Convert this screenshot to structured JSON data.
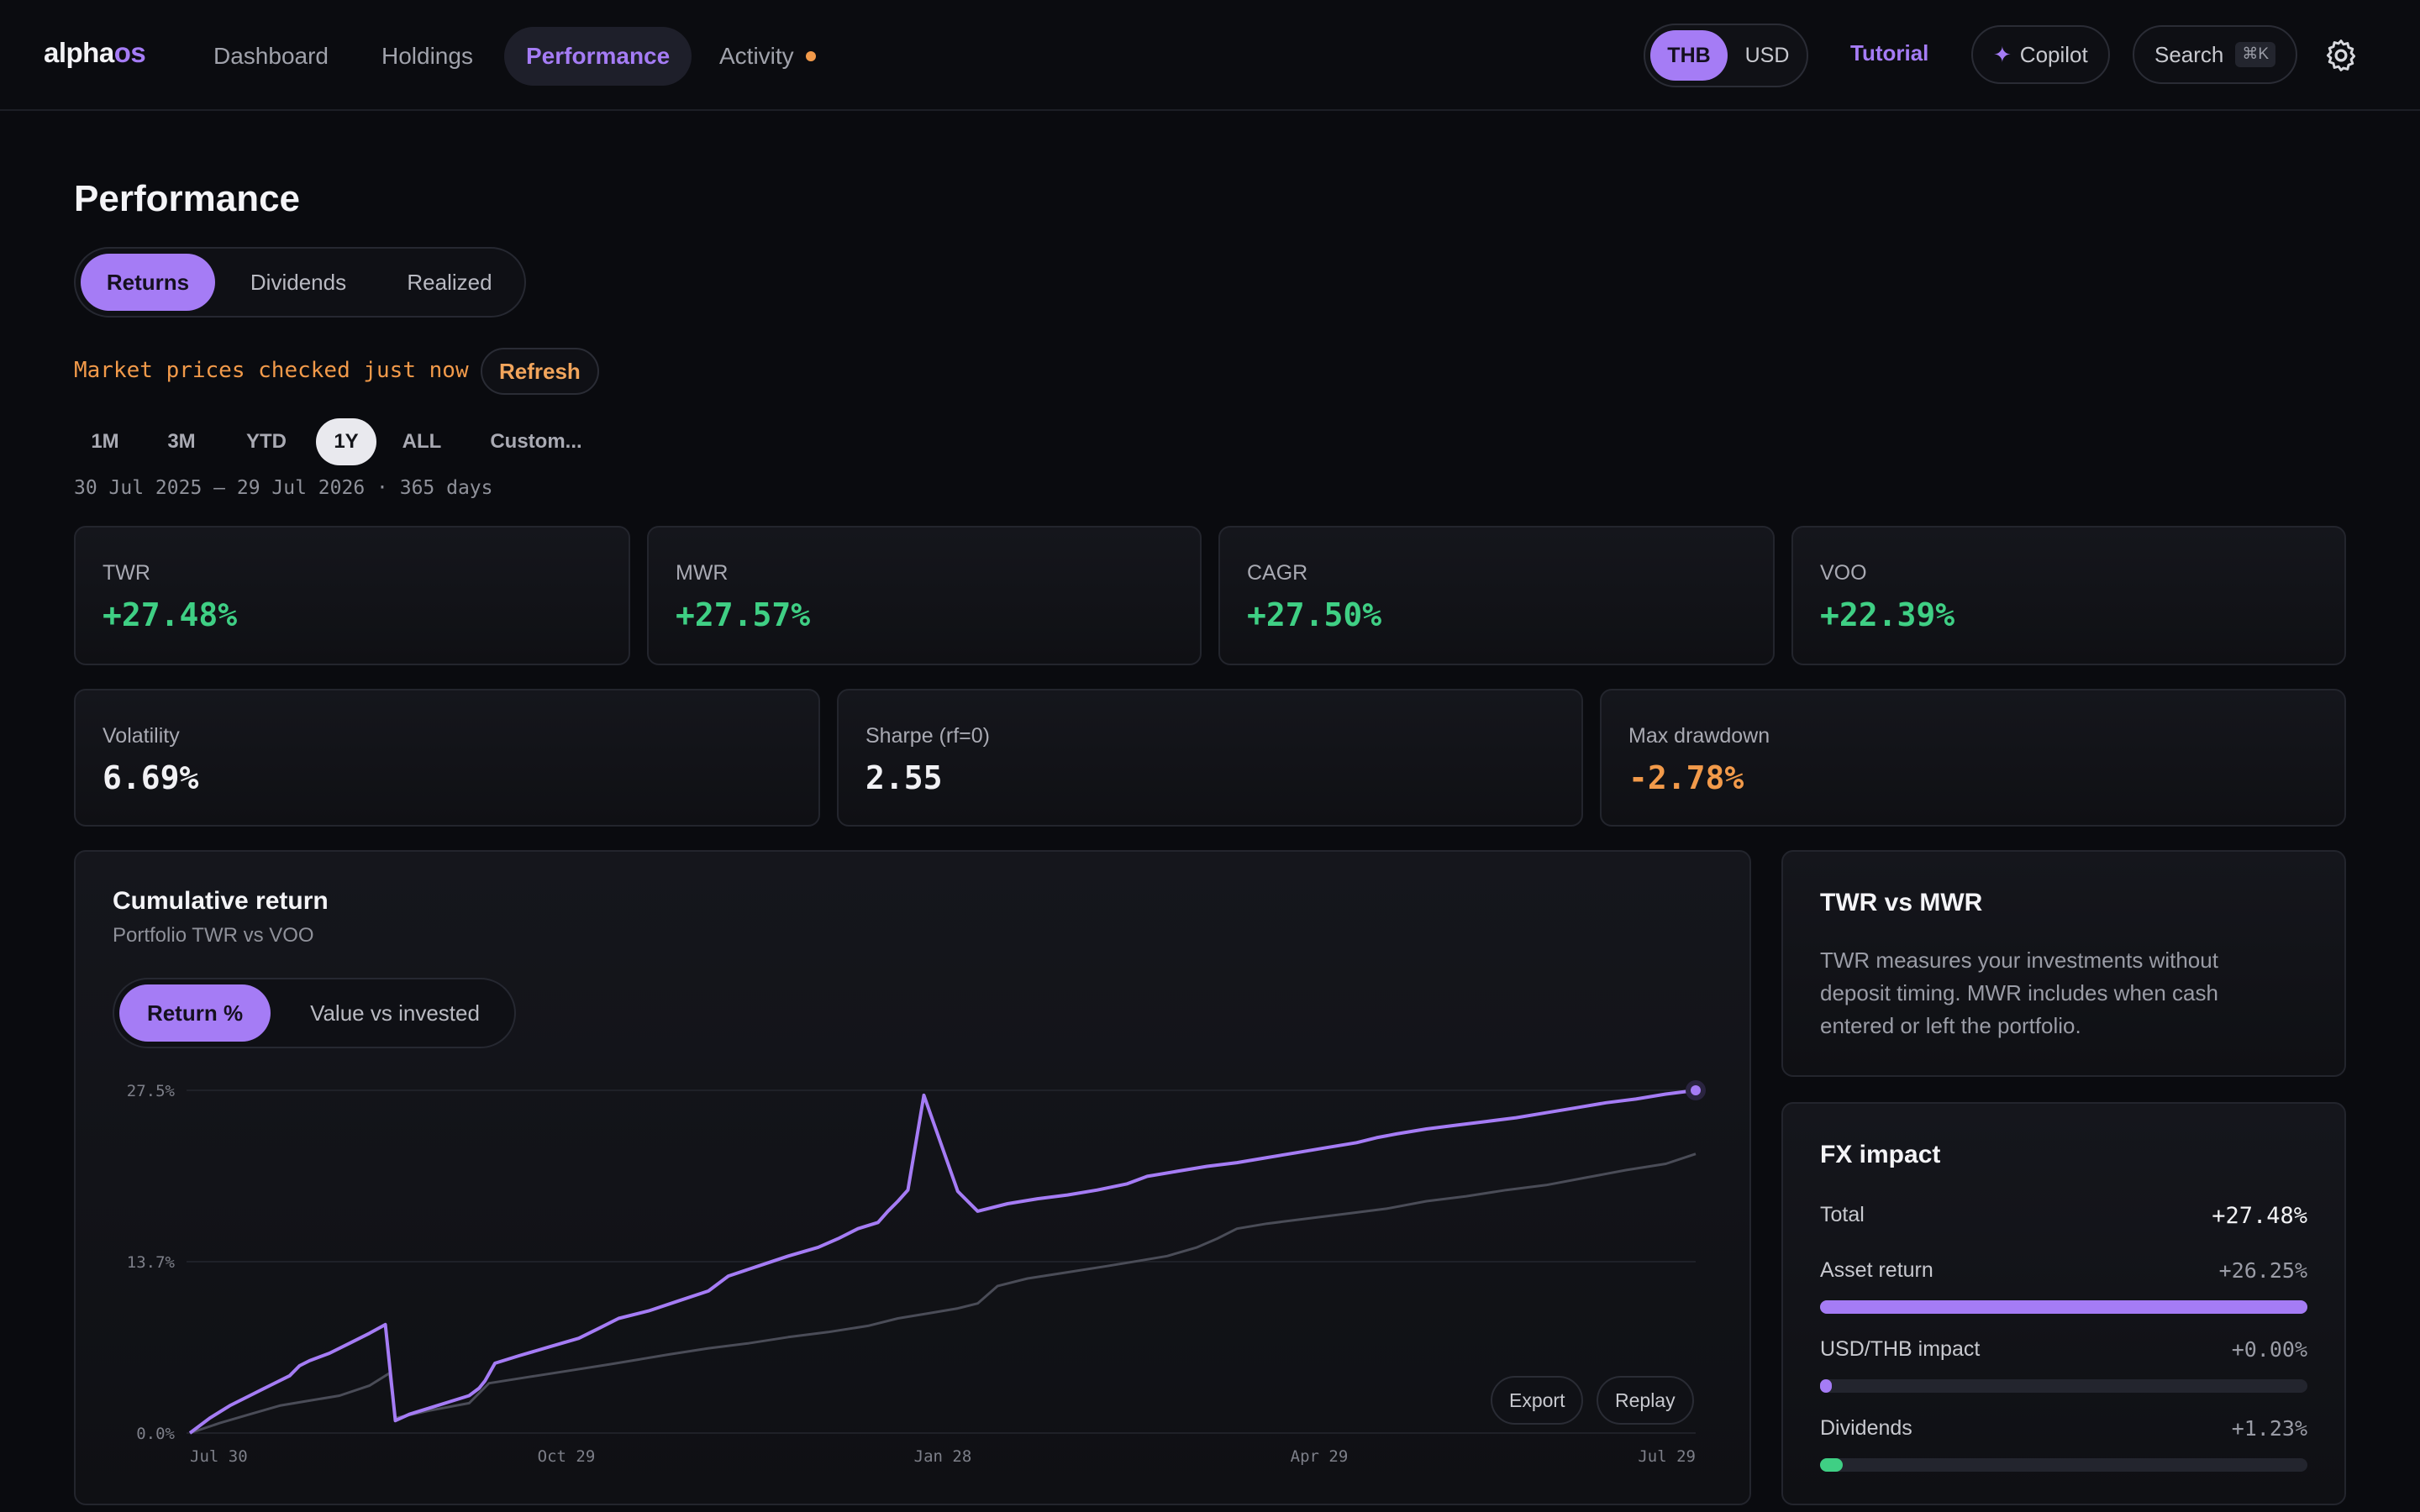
{
  "app": {
    "logo_left": "alpha",
    "logo_right": "os",
    "nav": [
      {
        "label": "Dashboard"
      },
      {
        "label": "Holdings"
      },
      {
        "label": "Performance"
      },
      {
        "label": "Activity"
      }
    ],
    "active_nav": "Performance",
    "currency": {
      "options": [
        "THB",
        "USD"
      ],
      "selected": "THB"
    },
    "tutorial": "Tutorial",
    "copilot": "Copilot",
    "search": "Search",
    "search_shortcut": "⌘K",
    "icons": {
      "copilot": "sparkle-icon",
      "settings": "gear-icon",
      "activity_badge": "notification-dot"
    },
    "colors": {
      "accent": "#a57cf5",
      "positive": "#3fcf84",
      "warning": "#f29a4a",
      "background": "#0a0b0f"
    }
  },
  "page": {
    "title": "Performance",
    "tabs": [
      "Returns",
      "Dividends",
      "Realized"
    ],
    "active_tab": "Returns",
    "market_status": "Market prices checked just now",
    "refresh": "Refresh",
    "ranges": [
      "1M",
      "3M",
      "YTD",
      "1Y",
      "ALL",
      "Custom..."
    ],
    "active_range": "1Y",
    "period": "30 Jul 2025 – 29 Jul 2026 · 365 days"
  },
  "stats_top": [
    {
      "label": "TWR",
      "value": "+27.48%"
    },
    {
      "label": "MWR",
      "value": "+27.57%"
    },
    {
      "label": "CAGR",
      "value": "+27.50%"
    },
    {
      "label": "VOO",
      "value": "+22.39%"
    }
  ],
  "stats_bottom": [
    {
      "label": "Volatility",
      "value": "6.69%"
    },
    {
      "label": "Sharpe (rf=0)",
      "value": "2.55"
    },
    {
      "label": "Max drawdown",
      "value": "-2.78%"
    }
  ],
  "chart_panel": {
    "title": "Cumulative return",
    "subtitle": "Portfolio TWR vs VOO",
    "modes": [
      "Return %",
      "Value vs invested"
    ],
    "active_mode": "Return %",
    "export": "Export",
    "replay": "Replay"
  },
  "chart_data": {
    "type": "line",
    "y_ticks": [
      "27.5%",
      "13.7%",
      "0.0%"
    ],
    "x_ticks": [
      "Jul 30",
      "Oct 29",
      "Jan 28",
      "Apr 29",
      "Jul 29"
    ],
    "ylim": [
      0,
      27.5
    ],
    "grid": true,
    "series": [
      {
        "color": "#a57cf5",
        "points": [
          [
            0,
            0
          ],
          [
            10,
            1.2
          ],
          [
            20,
            2.2
          ],
          [
            30,
            3.0
          ],
          [
            40,
            3.8
          ],
          [
            50,
            4.6
          ],
          [
            55,
            5.4
          ],
          [
            60,
            5.8
          ],
          [
            70,
            6.4
          ],
          [
            80,
            7.2
          ],
          [
            90,
            8.0
          ],
          [
            98,
            8.7
          ],
          [
            103,
            1.0
          ],
          [
            110,
            1.5
          ],
          [
            120,
            2.0
          ],
          [
            130,
            2.5
          ],
          [
            140,
            3.0
          ],
          [
            145,
            3.6
          ],
          [
            148,
            4.2
          ],
          [
            153,
            5.6
          ],
          [
            165,
            6.2
          ],
          [
            180,
            6.9
          ],
          [
            195,
            7.6
          ],
          [
            205,
            8.4
          ],
          [
            215,
            9.2
          ],
          [
            230,
            9.8
          ],
          [
            245,
            10.6
          ],
          [
            260,
            11.4
          ],
          [
            270,
            12.6
          ],
          [
            285,
            13.4
          ],
          [
            300,
            14.2
          ],
          [
            315,
            14.9
          ],
          [
            325,
            15.6
          ],
          [
            335,
            16.4
          ],
          [
            345,
            16.9
          ],
          [
            350,
            17.8
          ],
          [
            355,
            18.6
          ],
          [
            360,
            19.5
          ],
          [
            368,
            27.1
          ],
          [
            385,
            19.4
          ],
          [
            395,
            17.8
          ],
          [
            410,
            18.4
          ],
          [
            425,
            18.8
          ],
          [
            440,
            19.1
          ],
          [
            455,
            19.5
          ],
          [
            470,
            20.0
          ],
          [
            480,
            20.6
          ],
          [
            495,
            21.0
          ],
          [
            510,
            21.4
          ],
          [
            525,
            21.7
          ],
          [
            540,
            22.1
          ],
          [
            555,
            22.5
          ],
          [
            570,
            22.9
          ],
          [
            585,
            23.3
          ],
          [
            595,
            23.7
          ],
          [
            605,
            24.0
          ],
          [
            620,
            24.4
          ],
          [
            635,
            24.7
          ],
          [
            650,
            25.0
          ],
          [
            665,
            25.3
          ],
          [
            680,
            25.7
          ],
          [
            695,
            26.1
          ],
          [
            710,
            26.5
          ],
          [
            725,
            26.8
          ],
          [
            740,
            27.2
          ],
          [
            755,
            27.5
          ]
        ]
      },
      {
        "color": "#4a4c57",
        "points": [
          [
            0,
            0
          ],
          [
            15,
            0.8
          ],
          [
            30,
            1.5
          ],
          [
            45,
            2.2
          ],
          [
            60,
            2.6
          ],
          [
            75,
            3.0
          ],
          [
            90,
            3.8
          ],
          [
            100,
            4.8
          ],
          [
            103,
            1.2
          ],
          [
            120,
            1.8
          ],
          [
            140,
            2.4
          ],
          [
            150,
            4.0
          ],
          [
            170,
            4.5
          ],
          [
            190,
            5.0
          ],
          [
            210,
            5.5
          ],
          [
            225,
            5.9
          ],
          [
            240,
            6.3
          ],
          [
            260,
            6.8
          ],
          [
            280,
            7.2
          ],
          [
            300,
            7.7
          ],
          [
            320,
            8.1
          ],
          [
            340,
            8.6
          ],
          [
            355,
            9.2
          ],
          [
            370,
            9.6
          ],
          [
            385,
            10.0
          ],
          [
            395,
            10.4
          ],
          [
            405,
            11.8
          ],
          [
            420,
            12.4
          ],
          [
            440,
            12.9
          ],
          [
            460,
            13.4
          ],
          [
            475,
            13.8
          ],
          [
            490,
            14.2
          ],
          [
            505,
            14.9
          ],
          [
            515,
            15.6
          ],
          [
            525,
            16.4
          ],
          [
            540,
            16.8
          ],
          [
            560,
            17.2
          ],
          [
            580,
            17.6
          ],
          [
            600,
            18.0
          ],
          [
            620,
            18.6
          ],
          [
            640,
            19.0
          ],
          [
            660,
            19.5
          ],
          [
            680,
            19.9
          ],
          [
            700,
            20.5
          ],
          [
            720,
            21.1
          ],
          [
            740,
            21.6
          ],
          [
            755,
            22.4
          ]
        ]
      }
    ]
  },
  "twr_mwr": {
    "title": "TWR vs MWR",
    "text": "TWR measures your investments without deposit timing. MWR includes when cash entered or left the portfolio."
  },
  "fx_impact": {
    "title": "FX impact",
    "total_label": "Total",
    "total_value": "+27.48%",
    "rows": [
      {
        "label": "Asset return",
        "value": "+26.25%",
        "fraction": 1.0,
        "color": "#a57cf5"
      },
      {
        "label": "USD/THB impact",
        "value": "+0.00%",
        "fraction": 0.02,
        "color": "#a57cf5"
      },
      {
        "label": "Dividends",
        "value": "+1.23%",
        "fraction": 0.047,
        "color": "#3fcf84"
      }
    ]
  }
}
